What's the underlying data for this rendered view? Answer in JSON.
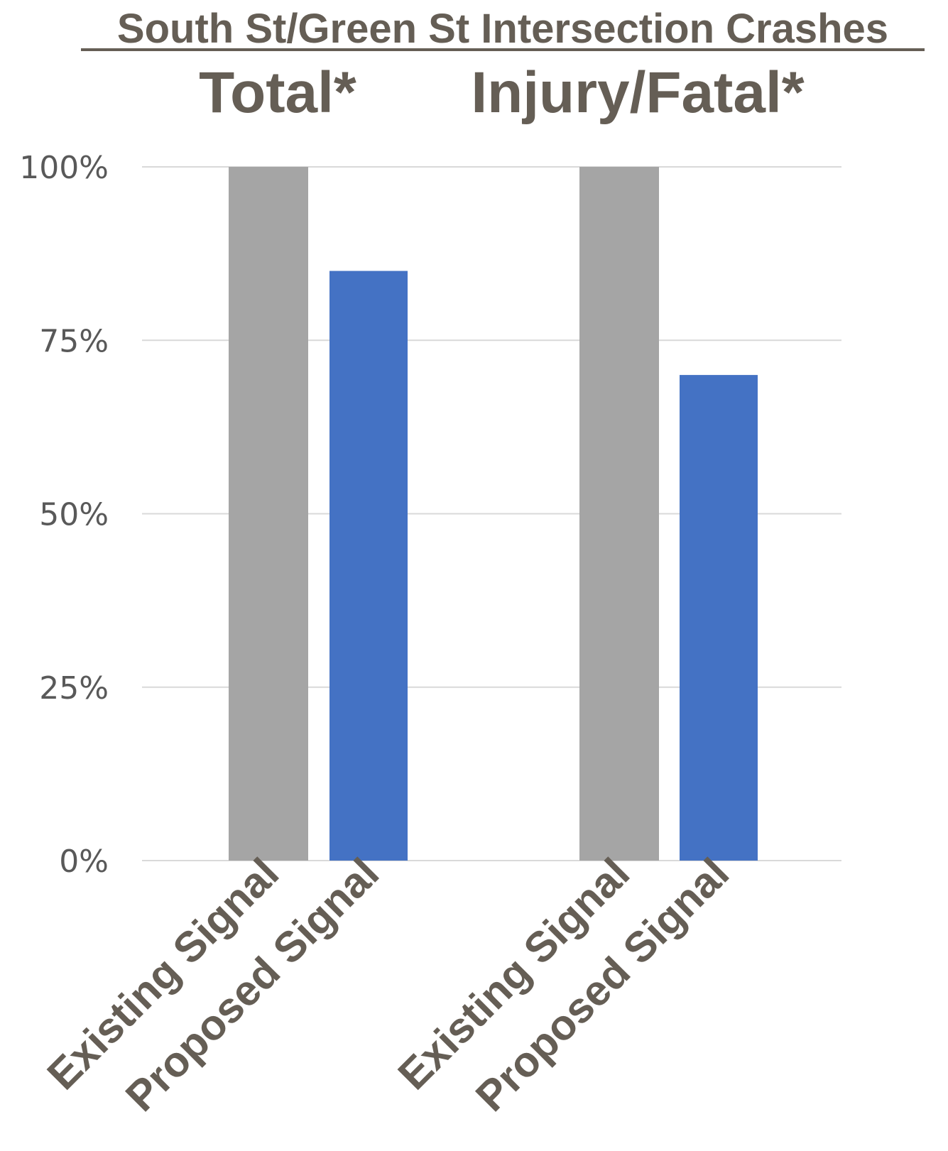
{
  "chart_data": {
    "type": "bar",
    "title": "South St/Green St Intersection Crashes",
    "groups": [
      {
        "label": "Total*",
        "categories": [
          "Existing Signal",
          "Proposed Signal"
        ],
        "values": [
          100,
          85
        ]
      },
      {
        "label": "Injury/Fatal*",
        "categories": [
          "Existing Signal",
          "Proposed Signal"
        ],
        "values": [
          100,
          70
        ]
      }
    ],
    "bar_colors": {
      "Existing Signal": "#a5a5a5",
      "Proposed Signal": "#4472c4"
    },
    "ylim": [
      0,
      100
    ],
    "yticks": [
      0,
      25,
      50,
      75,
      100
    ],
    "ytick_labels": [
      "0%",
      "25%",
      "50%",
      "75%",
      "100%"
    ],
    "xlabel": "",
    "ylabel": "",
    "grid": true,
    "legend": "none"
  }
}
